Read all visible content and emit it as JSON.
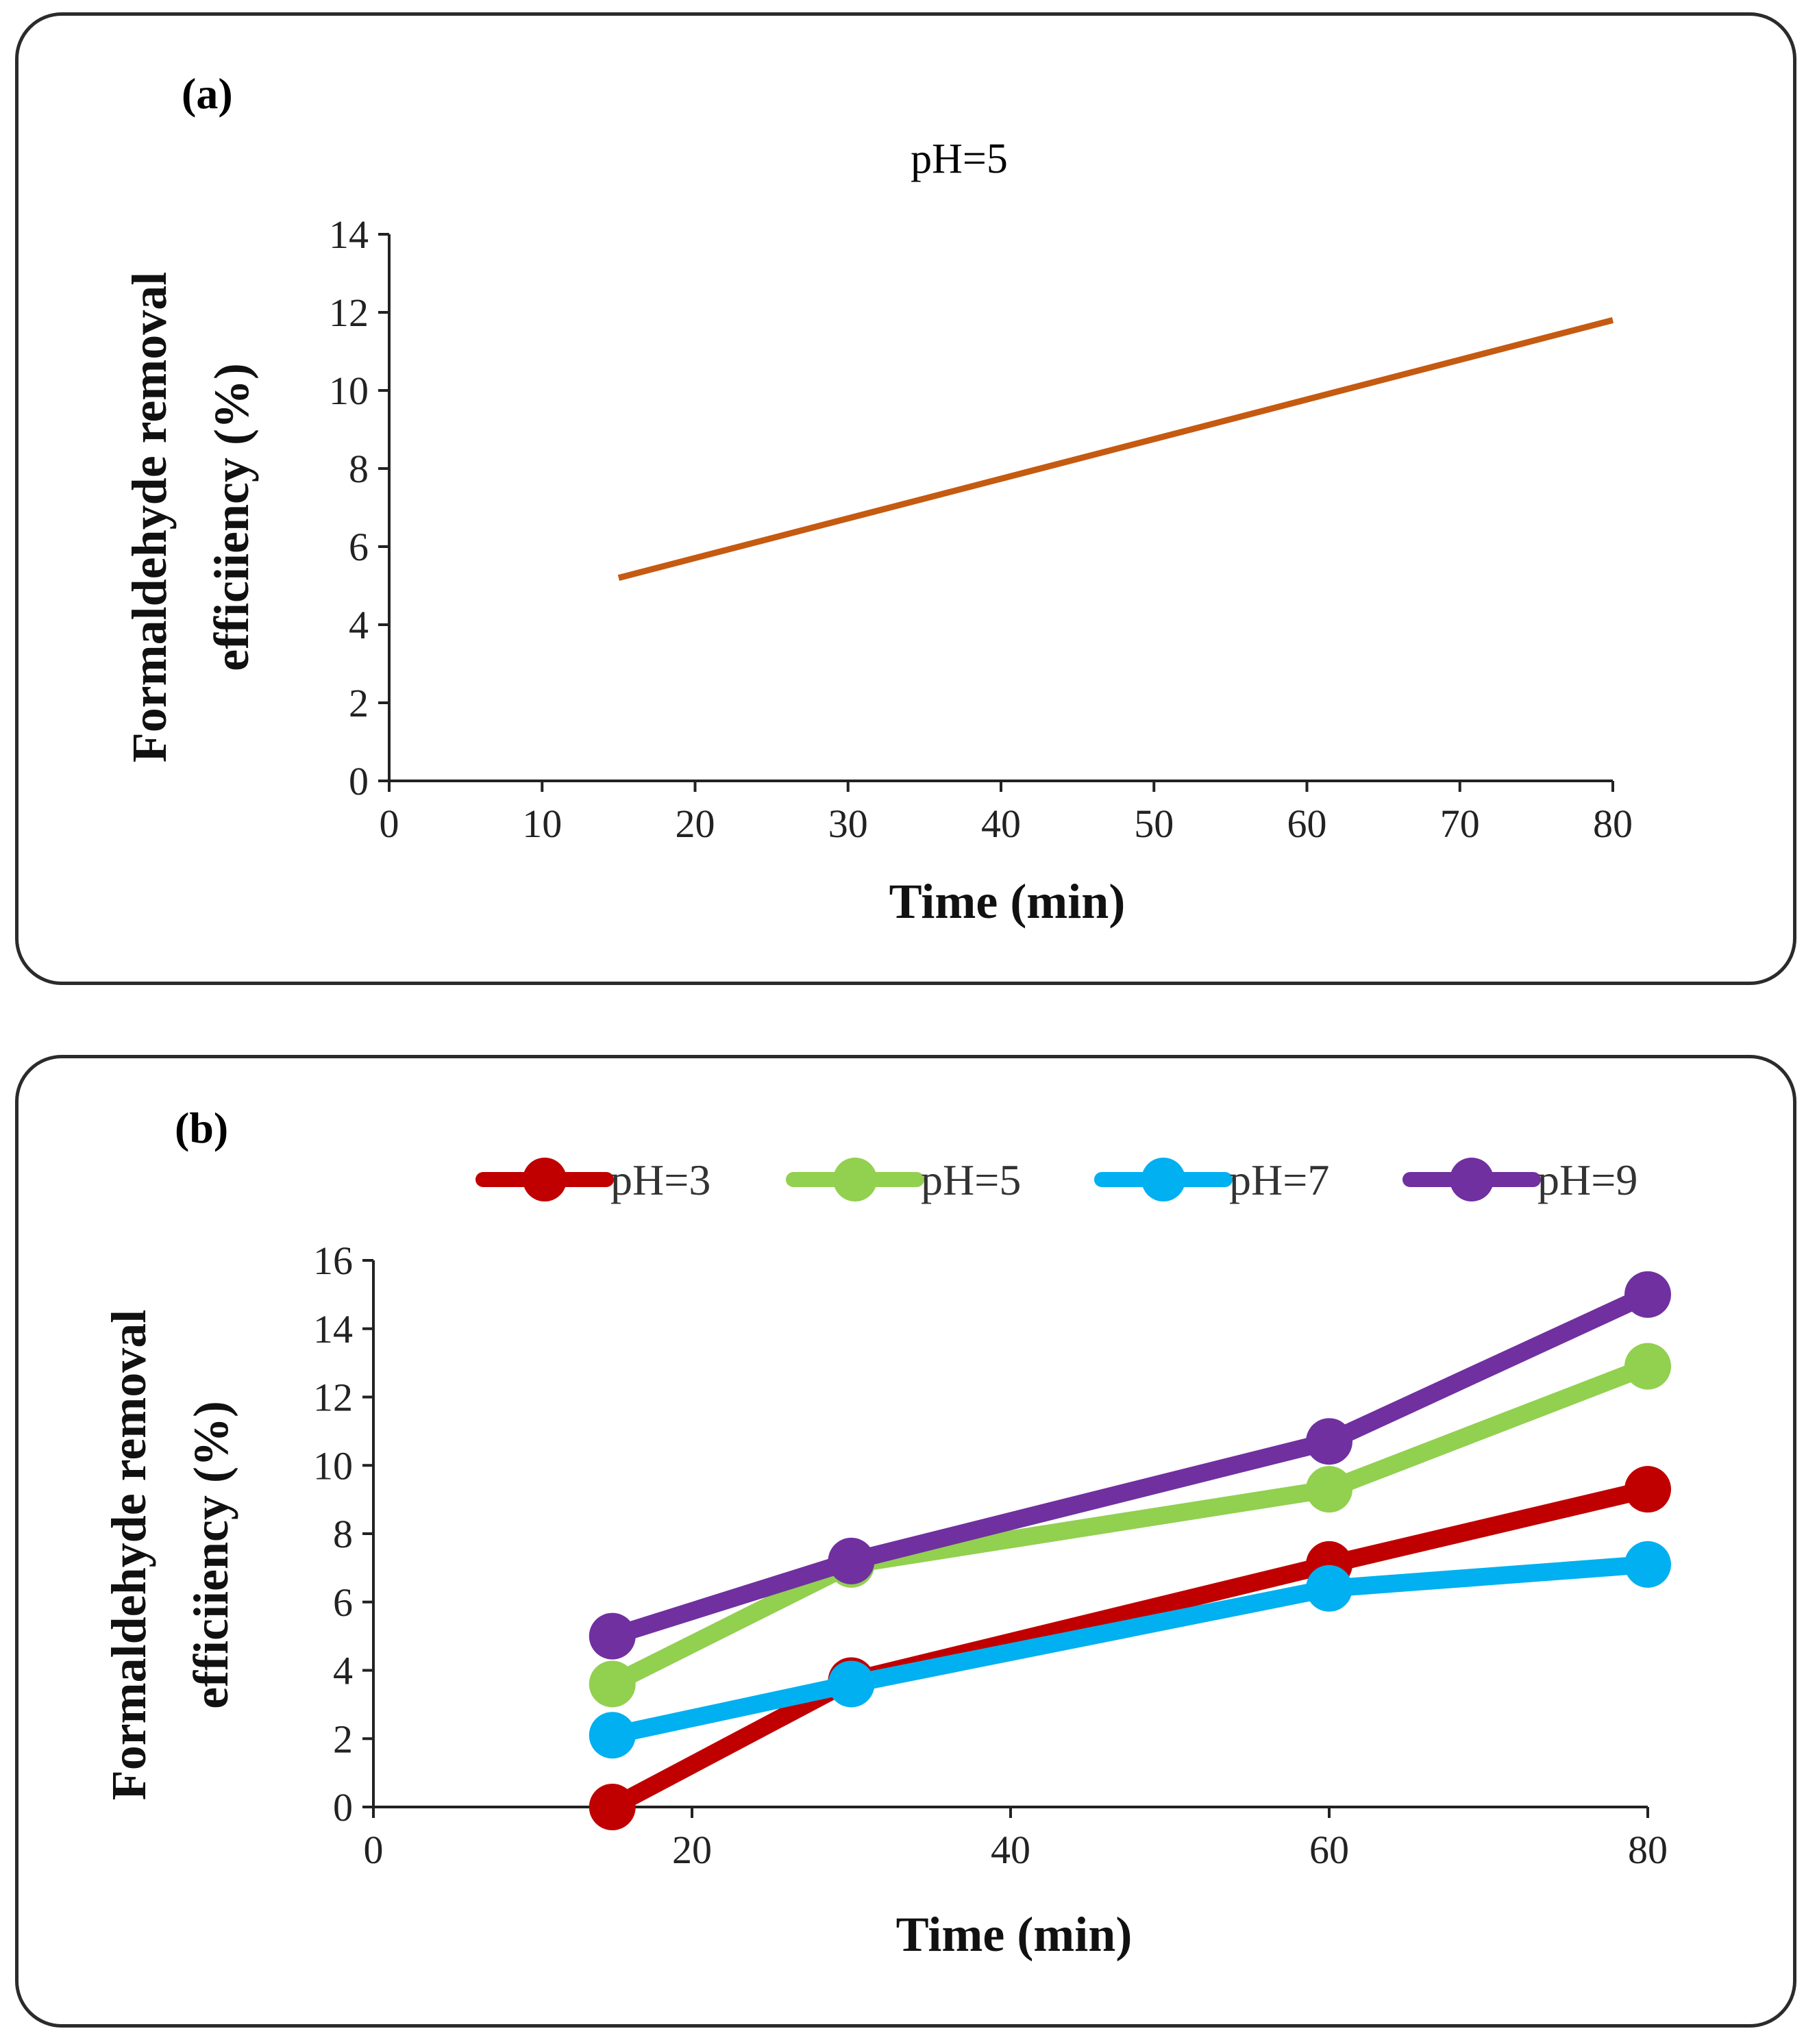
{
  "chart_data": [
    {
      "panel_label": "(a)",
      "type": "line",
      "title": "pH=5",
      "xlabel": "Time (min)",
      "ylabel": "Formaldehyde removal efficiiency (%)",
      "ylabel_lines": [
        "Formaldehyde removal",
        "efficiiency (%)"
      ],
      "xlim": [
        0,
        80
      ],
      "ylim": [
        0,
        14
      ],
      "xticks": [
        0,
        10,
        20,
        30,
        40,
        50,
        60,
        70,
        80
      ],
      "yticks": [
        0,
        2,
        4,
        6,
        8,
        10,
        12,
        14
      ],
      "grid": false,
      "series": [
        {
          "name": "pH=5",
          "color": "#c55a11",
          "x": [
            15,
            80
          ],
          "y": [
            5.2,
            11.8
          ]
        }
      ]
    },
    {
      "panel_label": "(b)",
      "type": "line",
      "title": "",
      "xlabel": "Time (min)",
      "ylabel": "Formaldehyde removal efficiiency (%)",
      "ylabel_lines": [
        "Formaldehyde removal",
        "efficiiency (%)"
      ],
      "xlim": [
        0,
        80
      ],
      "ylim": [
        0,
        16
      ],
      "xticks": [
        0,
        20,
        40,
        60,
        80
      ],
      "yticks": [
        0,
        2,
        4,
        6,
        8,
        10,
        12,
        14,
        16
      ],
      "grid": false,
      "legend_position": "top",
      "series": [
        {
          "name": "pH=3",
          "color": "#c00000",
          "x": [
            15,
            30,
            60,
            80
          ],
          "y": [
            0,
            3.7,
            7.1,
            9.3
          ]
        },
        {
          "name": "pH=5",
          "color": "#92d050",
          "x": [
            15,
            30,
            60,
            80
          ],
          "y": [
            3.6,
            7.1,
            9.3,
            12.9
          ]
        },
        {
          "name": "pH=7",
          "color": "#00b0f0",
          "x": [
            15,
            30,
            60,
            80
          ],
          "y": [
            2.1,
            3.6,
            6.4,
            7.1
          ]
        },
        {
          "name": "pH=9",
          "color": "#7030a0",
          "x": [
            15,
            30,
            60,
            80
          ],
          "y": [
            5.0,
            7.2,
            10.7,
            15.0
          ]
        }
      ]
    }
  ]
}
